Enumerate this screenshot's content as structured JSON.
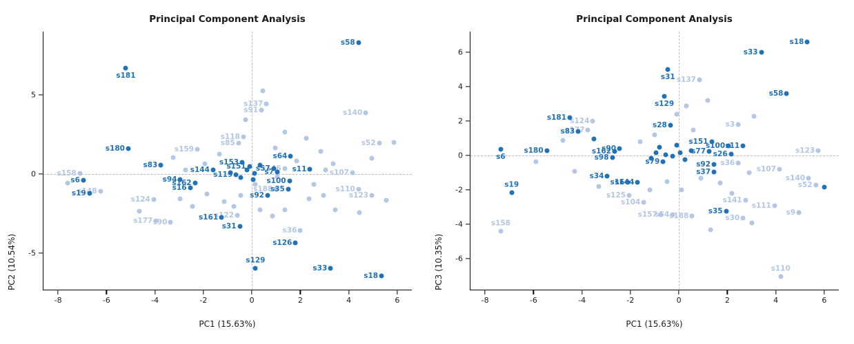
{
  "figure": {
    "background": "#ffffff",
    "point_color_dark": "#2171b5",
    "point_color_light": "#b3c6e4"
  },
  "chart_data": [
    {
      "type": "scatter",
      "title": "Principal Component Analysis",
      "xlabel": "PC1 (15.63%)",
      "ylabel": "PC2 (10.54%)",
      "xlim": [
        -8.6,
        6.6
      ],
      "ylim": [
        -7.3,
        9.0
      ],
      "xticks": [
        -8,
        -6,
        -4,
        -2,
        0,
        2,
        4,
        6
      ],
      "yticks": [
        -5,
        0,
        5
      ],
      "grid": "dashed zero lines only",
      "legend": "none",
      "colors": {
        "dark": "#2171b5",
        "light": "#b3c6e4"
      },
      "points": [
        {
          "label": "s58",
          "x": 4.4,
          "y": 8.3,
          "g": "dark"
        },
        {
          "label": "s181",
          "x": -5.2,
          "y": 6.7,
          "g": "dark",
          "lp": "b"
        },
        {
          "label": "s180",
          "x": -5.1,
          "y": 1.6,
          "g": "dark"
        },
        {
          "label": "s83",
          "x": -3.75,
          "y": 0.55,
          "g": "dark"
        },
        {
          "label": "s6",
          "x": -6.95,
          "y": -0.4,
          "g": "dark"
        },
        {
          "label": "s19",
          "x": -6.7,
          "y": -1.2,
          "g": "dark"
        },
        {
          "label": "s94",
          "x": -2.95,
          "y": -0.35,
          "g": "dark"
        },
        {
          "label": "s162",
          "x": -2.35,
          "y": -0.55,
          "g": "dark"
        },
        {
          "label": "s16",
          "x": -2.55,
          "y": -0.85,
          "g": "dark"
        },
        {
          "label": "s144",
          "x": -1.6,
          "y": 0.25,
          "g": "dark"
        },
        {
          "label": "s161",
          "x": -1.25,
          "y": -2.75,
          "g": "dark"
        },
        {
          "label": "s31",
          "x": -0.5,
          "y": -3.3,
          "g": "dark"
        },
        {
          "label": "s129",
          "x": 0.15,
          "y": -5.95,
          "g": "dark",
          "lp": "a"
        },
        {
          "label": "s126",
          "x": 1.8,
          "y": -4.35,
          "g": "dark"
        },
        {
          "label": "s33",
          "x": 3.25,
          "y": -5.95,
          "g": "dark"
        },
        {
          "label": "s18",
          "x": 5.35,
          "y": -6.45,
          "g": "dark"
        },
        {
          "label": "s35",
          "x": 1.5,
          "y": -0.95,
          "g": "dark"
        },
        {
          "label": "s100",
          "x": 1.55,
          "y": -0.45,
          "g": "dark"
        },
        {
          "label": "s92",
          "x": 0.65,
          "y": -1.35,
          "g": "dark"
        },
        {
          "label": "s11",
          "x": 2.4,
          "y": 0.3,
          "g": "dark"
        },
        {
          "label": "s64",
          "x": 1.6,
          "y": 1.15,
          "g": "dark"
        },
        {
          "label": "s57",
          "x": 0.9,
          "y": 0.35,
          "g": "dark"
        },
        {
          "label": "s7",
          "x": 1.05,
          "y": 0.15,
          "g": "dark"
        },
        {
          "label": "s151",
          "x": -0.1,
          "y": 0.5,
          "g": "dark"
        },
        {
          "label": "s119",
          "x": -0.65,
          "y": -0.05,
          "g": "dark"
        },
        {
          "label": "s153",
          "x": -0.4,
          "y": 0.75,
          "g": "dark"
        },
        {
          "label": "",
          "x": -0.2,
          "y": 0.25,
          "g": "dark"
        },
        {
          "label": "",
          "x": 0.1,
          "y": 0.05,
          "g": "dark"
        },
        {
          "label": "",
          "x": 0.35,
          "y": 0.55,
          "g": "dark"
        },
        {
          "label": "",
          "x": -0.45,
          "y": -0.2,
          "g": "dark"
        },
        {
          "label": "",
          "x": 0.05,
          "y": -0.35,
          "g": "dark"
        },
        {
          "label": "",
          "x": -0.9,
          "y": 0.1,
          "g": "dark"
        },
        {
          "label": "s158",
          "x": -7.1,
          "y": 0.05,
          "g": "light"
        },
        {
          "label": "s148",
          "x": -6.25,
          "y": -1.1,
          "g": "light"
        },
        {
          "label": "s124",
          "x": -4.05,
          "y": -1.6,
          "g": "light"
        },
        {
          "label": "s177",
          "x": -3.95,
          "y": -2.95,
          "g": "light"
        },
        {
          "label": "s90",
          "x": -3.35,
          "y": -3.05,
          "g": "light"
        },
        {
          "label": "s159",
          "x": -2.25,
          "y": 1.55,
          "g": "light"
        },
        {
          "label": "s118",
          "x": -0.35,
          "y": 2.35,
          "g": "light"
        },
        {
          "label": "s85",
          "x": -0.55,
          "y": 1.95,
          "g": "light"
        },
        {
          "label": "s137",
          "x": 0.6,
          "y": 4.45,
          "g": "light"
        },
        {
          "label": "s91",
          "x": 0.4,
          "y": 4.05,
          "g": "light"
        },
        {
          "label": "s140",
          "x": 4.7,
          "y": 3.85,
          "g": "light"
        },
        {
          "label": "s52",
          "x": 5.25,
          "y": 1.95,
          "g": "light"
        },
        {
          "label": "s107",
          "x": 4.15,
          "y": 0.1,
          "g": "light"
        },
        {
          "label": "s110",
          "x": 4.4,
          "y": -0.95,
          "g": "light"
        },
        {
          "label": "s123",
          "x": 4.95,
          "y": -1.35,
          "g": "light"
        },
        {
          "label": "s36",
          "x": 2.0,
          "y": -3.55,
          "g": "light"
        },
        {
          "label": "s122",
          "x": -0.6,
          "y": -2.6,
          "g": "light"
        },
        {
          "label": "s188",
          "x": 1.0,
          "y": -0.95,
          "g": "light"
        },
        {
          "label": "s146",
          "x": 1.35,
          "y": 0.35,
          "g": "light"
        },
        {
          "label": "",
          "x": -7.6,
          "y": -0.55,
          "g": "light"
        },
        {
          "label": "",
          "x": -4.65,
          "y": -2.35,
          "g": "light"
        },
        {
          "label": "",
          "x": -2.95,
          "y": -1.55,
          "g": "light"
        },
        {
          "label": "",
          "x": -2.45,
          "y": -2.05,
          "g": "light"
        },
        {
          "label": "",
          "x": -1.85,
          "y": -1.25,
          "g": "light"
        },
        {
          "label": "",
          "x": -1.15,
          "y": -1.75,
          "g": "light"
        },
        {
          "label": "",
          "x": -0.75,
          "y": -2.05,
          "g": "light"
        },
        {
          "label": "",
          "x": 0.35,
          "y": -2.25,
          "g": "light"
        },
        {
          "label": "",
          "x": 0.85,
          "y": -2.65,
          "g": "light"
        },
        {
          "label": "",
          "x": 1.35,
          "y": -2.25,
          "g": "light"
        },
        {
          "label": "",
          "x": 2.35,
          "y": -1.55,
          "g": "light"
        },
        {
          "label": "",
          "x": 2.95,
          "y": -1.35,
          "g": "light"
        },
        {
          "label": "",
          "x": 3.45,
          "y": -2.25,
          "g": "light"
        },
        {
          "label": "",
          "x": 4.45,
          "y": -2.45,
          "g": "light"
        },
        {
          "label": "",
          "x": 5.55,
          "y": -1.65,
          "g": "light"
        },
        {
          "label": "",
          "x": 5.85,
          "y": 2.0,
          "g": "light"
        },
        {
          "label": "",
          "x": 4.95,
          "y": 1.0,
          "g": "light"
        },
        {
          "label": "",
          "x": 3.35,
          "y": 0.65,
          "g": "light"
        },
        {
          "label": "",
          "x": 2.85,
          "y": 1.45,
          "g": "light"
        },
        {
          "label": "",
          "x": 2.25,
          "y": 2.25,
          "g": "light"
        },
        {
          "label": "",
          "x": 1.35,
          "y": 2.65,
          "g": "light"
        },
        {
          "label": "",
          "x": 0.45,
          "y": 5.25,
          "g": "light"
        },
        {
          "label": "",
          "x": -0.25,
          "y": 3.45,
          "g": "light"
        },
        {
          "label": "",
          "x": -1.35,
          "y": 1.25,
          "g": "light"
        },
        {
          "label": "",
          "x": -1.95,
          "y": 0.65,
          "g": "light"
        },
        {
          "label": "",
          "x": -3.25,
          "y": 1.05,
          "g": "light"
        },
        {
          "label": "",
          "x": -2.75,
          "y": 0.25,
          "g": "light"
        },
        {
          "label": "",
          "x": 0.95,
          "y": 1.65,
          "g": "light"
        },
        {
          "label": "",
          "x": 1.85,
          "y": 0.85,
          "g": "light"
        },
        {
          "label": "",
          "x": 0.15,
          "y": -0.65,
          "g": "light"
        },
        {
          "label": "",
          "x": -0.45,
          "y": -1.35,
          "g": "light"
        },
        {
          "label": "",
          "x": 1.05,
          "y": -0.15,
          "g": "light"
        },
        {
          "label": "",
          "x": 2.55,
          "y": -0.65,
          "g": "light"
        },
        {
          "label": "",
          "x": 3.05,
          "y": 0.25,
          "g": "light"
        }
      ]
    },
    {
      "type": "scatter",
      "title": "Principal Component Analysis",
      "xlabel": "PC1 (15.63%)",
      "ylabel": "PC3 (10.35%)",
      "xlim": [
        -8.6,
        6.6
      ],
      "ylim": [
        -7.8,
        7.2
      ],
      "xticks": [
        -8,
        -6,
        -4,
        -2,
        0,
        2,
        4,
        6
      ],
      "yticks": [
        -6,
        -4,
        -2,
        0,
        2,
        4,
        6
      ],
      "grid": "dashed zero lines only",
      "legend": "none",
      "colors": {
        "dark": "#2171b5",
        "light": "#b3c6e4"
      },
      "points": [
        {
          "label": "s18",
          "x": 5.3,
          "y": 6.6,
          "g": "dark"
        },
        {
          "label": "s33",
          "x": 3.4,
          "y": 6.0,
          "g": "dark"
        },
        {
          "label": "s58",
          "x": 4.45,
          "y": 3.6,
          "g": "dark"
        },
        {
          "label": "s31",
          "x": -0.45,
          "y": 5.0,
          "g": "dark",
          "lp": "b"
        },
        {
          "label": "s129",
          "x": -0.6,
          "y": 3.45,
          "g": "dark",
          "lp": "b"
        },
        {
          "label": "s181",
          "x": -4.5,
          "y": 2.2,
          "g": "dark"
        },
        {
          "label": "s83",
          "x": -4.15,
          "y": 1.4,
          "g": "dark"
        },
        {
          "label": "s180",
          "x": -5.45,
          "y": 0.3,
          "g": "dark"
        },
        {
          "label": "s6",
          "x": -7.35,
          "y": 0.35,
          "g": "dark",
          "lp": "b"
        },
        {
          "label": "s19",
          "x": -6.9,
          "y": -2.15,
          "g": "dark",
          "lp": "a"
        },
        {
          "label": "s90",
          "x": -2.45,
          "y": 0.4,
          "g": "dark"
        },
        {
          "label": "s98",
          "x": -2.75,
          "y": -0.1,
          "g": "dark"
        },
        {
          "label": "s34",
          "x": -2.95,
          "y": -1.2,
          "g": "dark"
        },
        {
          "label": "s162",
          "x": -2.65,
          "y": 0.25,
          "g": "dark"
        },
        {
          "label": "s16",
          "x": -2.1,
          "y": -1.55,
          "g": "dark"
        },
        {
          "label": "s144",
          "x": -1.7,
          "y": -1.55,
          "g": "dark"
        },
        {
          "label": "s28",
          "x": -0.35,
          "y": 1.75,
          "g": "dark"
        },
        {
          "label": "s151",
          "x": 1.35,
          "y": 0.8,
          "g": "dark"
        },
        {
          "label": "s100",
          "x": 2.05,
          "y": 0.55,
          "g": "dark"
        },
        {
          "label": "s11",
          "x": 2.65,
          "y": 0.55,
          "g": "dark"
        },
        {
          "label": "s77",
          "x": 1.25,
          "y": 0.25,
          "g": "dark"
        },
        {
          "label": "s26",
          "x": 2.15,
          "y": 0.1,
          "g": "dark"
        },
        {
          "label": "s92",
          "x": 1.45,
          "y": -0.5,
          "g": "dark"
        },
        {
          "label": "s37",
          "x": 1.45,
          "y": -0.95,
          "g": "dark"
        },
        {
          "label": "s79",
          "x": -0.65,
          "y": -0.35,
          "g": "dark"
        },
        {
          "label": "s35",
          "x": 1.95,
          "y": -3.25,
          "g": "dark"
        },
        {
          "label": "",
          "x": -0.95,
          "y": 0.15,
          "g": "dark"
        },
        {
          "label": "",
          "x": -0.55,
          "y": 0.05,
          "g": "dark"
        },
        {
          "label": "",
          "x": -0.25,
          "y": -0.05,
          "g": "dark"
        },
        {
          "label": "",
          "x": 0.05,
          "y": 0.15,
          "g": "dark"
        },
        {
          "label": "",
          "x": -1.15,
          "y": -0.15,
          "g": "dark"
        },
        {
          "label": "",
          "x": 0.25,
          "y": -0.25,
          "g": "dark"
        },
        {
          "label": "",
          "x": -0.8,
          "y": 0.5,
          "g": "dark"
        },
        {
          "label": "",
          "x": -0.1,
          "y": 0.6,
          "g": "dark"
        },
        {
          "label": "",
          "x": 0.5,
          "y": 0.3,
          "g": "dark"
        },
        {
          "label": "",
          "x": 6.0,
          "y": -1.85,
          "g": "dark"
        },
        {
          "label": "",
          "x": -3.5,
          "y": 0.95,
          "g": "dark"
        },
        {
          "label": "s137",
          "x": 0.85,
          "y": 4.4,
          "g": "light"
        },
        {
          "label": "s124",
          "x": -3.55,
          "y": 2.0,
          "g": "light"
        },
        {
          "label": "s177",
          "x": -3.75,
          "y": 1.5,
          "g": "light"
        },
        {
          "label": "s3",
          "x": 2.45,
          "y": 1.8,
          "g": "light"
        },
        {
          "label": "s123",
          "x": 5.75,
          "y": 0.3,
          "g": "light"
        },
        {
          "label": "s107",
          "x": 4.15,
          "y": -0.8,
          "g": "light"
        },
        {
          "label": "s140",
          "x": 5.35,
          "y": -1.3,
          "g": "light"
        },
        {
          "label": "s52",
          "x": 5.65,
          "y": -1.7,
          "g": "light"
        },
        {
          "label": "s141",
          "x": 2.75,
          "y": -2.6,
          "g": "light"
        },
        {
          "label": "s111",
          "x": 3.95,
          "y": -2.9,
          "g": "light"
        },
        {
          "label": "s9",
          "x": 4.95,
          "y": -3.3,
          "g": "light"
        },
        {
          "label": "s104",
          "x": -1.45,
          "y": -2.7,
          "g": "light"
        },
        {
          "label": "s125",
          "x": -2.05,
          "y": -2.3,
          "g": "light"
        },
        {
          "label": "s157",
          "x": -0.75,
          "y": -3.45,
          "g": "light"
        },
        {
          "label": "s54",
          "x": -0.25,
          "y": -3.45,
          "g": "light"
        },
        {
          "label": "s188",
          "x": 0.55,
          "y": -3.5,
          "g": "light"
        },
        {
          "label": "s30",
          "x": 2.65,
          "y": -3.65,
          "g": "light"
        },
        {
          "label": "s158",
          "x": -7.35,
          "y": -4.4,
          "g": "light",
          "lp": "a"
        },
        {
          "label": "s110",
          "x": 4.2,
          "y": -7.05,
          "g": "light",
          "lp": "a"
        },
        {
          "label": "s36",
          "x": 2.45,
          "y": -0.45,
          "g": "light"
        },
        {
          "label": "",
          "x": -4.3,
          "y": -0.9,
          "g": "light"
        },
        {
          "label": "",
          "x": -3.3,
          "y": -1.8,
          "g": "light"
        },
        {
          "label": "",
          "x": 0.3,
          "y": 2.9,
          "g": "light"
        },
        {
          "label": "",
          "x": 3.1,
          "y": 2.3,
          "g": "light"
        },
        {
          "label": "",
          "x": -1.0,
          "y": 1.2,
          "g": "light"
        },
        {
          "label": "",
          "x": -1.6,
          "y": 0.8,
          "g": "light"
        },
        {
          "label": "",
          "x": 0.9,
          "y": -1.3,
          "g": "light"
        },
        {
          "label": "",
          "x": 1.7,
          "y": -1.6,
          "g": "light"
        },
        {
          "label": "",
          "x": 2.9,
          "y": -1.0,
          "g": "light"
        },
        {
          "label": "",
          "x": 0.1,
          "y": -2.0,
          "g": "light"
        },
        {
          "label": "",
          "x": -0.5,
          "y": -1.5,
          "g": "light"
        },
        {
          "label": "",
          "x": -1.2,
          "y": -2.0,
          "g": "light"
        },
        {
          "label": "",
          "x": 2.2,
          "y": -2.2,
          "g": "light"
        },
        {
          "label": "",
          "x": 3.0,
          "y": -3.9,
          "g": "light"
        },
        {
          "label": "",
          "x": 1.3,
          "y": -4.3,
          "g": "light"
        },
        {
          "label": "",
          "x": -5.9,
          "y": -0.35,
          "g": "light"
        },
        {
          "label": "",
          "x": -4.8,
          "y": 0.9,
          "g": "light"
        },
        {
          "label": "",
          "x": 1.2,
          "y": 3.2,
          "g": "light"
        },
        {
          "label": "",
          "x": -0.1,
          "y": 2.4,
          "g": "light"
        },
        {
          "label": "",
          "x": 0.6,
          "y": 1.5,
          "g": "light"
        }
      ]
    }
  ]
}
